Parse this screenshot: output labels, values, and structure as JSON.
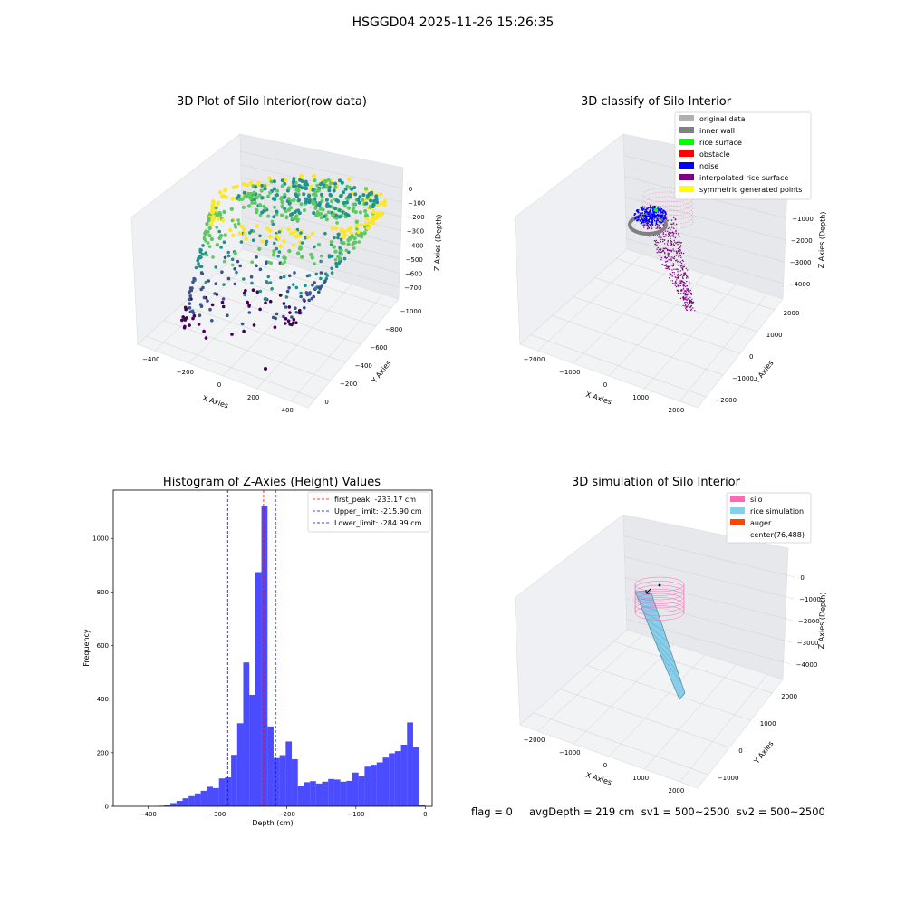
{
  "figure": {
    "title": "HSGGD04 2025-11-26 15:26:35",
    "footer": "flag = 0     avgDepth = 219 cm  sv1 = 500~2500  sv2 = 500~2500"
  },
  "chart_data": [
    {
      "type": "scatter",
      "subtype": "3d",
      "title": "3D Plot of Silo Interior(row data)",
      "xlabel": "X Axies",
      "ylabel": "Y Axies",
      "zlabel": "Z Axies (Depth)",
      "x_ticks": [
        "−400",
        "−200",
        "0",
        "200",
        "400"
      ],
      "y_ticks": [
        "0",
        "−200",
        "−400",
        "−600",
        "−800",
        "−1000"
      ],
      "z_ticks": [
        "0",
        "−100",
        "−200",
        "−300",
        "−400",
        "−500",
        "−600",
        "−700"
      ],
      "colormap": "viridis",
      "colors": [
        "#440154",
        "#3b528b",
        "#21918c",
        "#5ec962",
        "#fde725"
      ]
    },
    {
      "type": "scatter",
      "subtype": "3d",
      "title": "3D classify of Silo Interior",
      "xlabel": "X Axies",
      "ylabel": "Y Axies",
      "zlabel": "Z Axies (Depth)",
      "x_ticks": [
        "−2000",
        "−1000",
        "0",
        "1000",
        "2000"
      ],
      "y_ticks": [
        "−2000",
        "−1000",
        "0",
        "1000",
        "2000"
      ],
      "z_ticks": [
        "0",
        "−1000",
        "−2000",
        "−3000",
        "−4000"
      ],
      "legend": [
        {
          "label": "original data",
          "color": "#b0b0b0"
        },
        {
          "label": "inner wall",
          "color": "#808080"
        },
        {
          "label": "rice surface",
          "color": "#00ff00"
        },
        {
          "label": "obstacle",
          "color": "#ff0000"
        },
        {
          "label": "noise",
          "color": "#0000ff"
        },
        {
          "label": "interpolated rice surface",
          "color": "#800080"
        },
        {
          "label": "symmetric generated points",
          "color": "#ffff00"
        }
      ],
      "legend_position": "top-right"
    },
    {
      "type": "bar",
      "subtype": "histogram",
      "title": "Histogram of Z-Axies (Height) Values",
      "xlabel": "Depth (cm)",
      "ylabel": "Frequency",
      "xlim": [
        -450,
        10
      ],
      "ylim": [
        0,
        1180
      ],
      "x_ticks": [
        -400,
        -300,
        -200,
        -100,
        0
      ],
      "x_tick_labels": [
        "−400",
        "−300",
        "−200",
        "−100",
        "0"
      ],
      "y_ticks": [
        0,
        200,
        400,
        600,
        800,
        1000
      ],
      "bar_color": "#0000ff",
      "bins": [
        {
          "start": -385,
          "end": -378,
          "count": 2
        },
        {
          "start": -378,
          "end": -371,
          "count": 5
        },
        {
          "start": -371,
          "end": -364,
          "count": 12
        },
        {
          "start": -364,
          "end": -357,
          "count": 20
        },
        {
          "start": -357,
          "end": -350,
          "count": 30
        },
        {
          "start": -350,
          "end": -343,
          "count": 38
        },
        {
          "start": -343,
          "end": -336,
          "count": 48
        },
        {
          "start": -336,
          "end": -329,
          "count": 58
        },
        {
          "start": -329,
          "end": -322,
          "count": 73
        },
        {
          "start": -322,
          "end": -315,
          "count": 68
        },
        {
          "start": -315,
          "end": -308,
          "count": 104
        },
        {
          "start": -308,
          "end": -301,
          "count": 108
        },
        {
          "start": -301,
          "end": -294,
          "count": 192
        },
        {
          "start": -294,
          "end": -287,
          "count": 310
        },
        {
          "start": -287,
          "end": -280,
          "count": 537
        },
        {
          "start": -280,
          "end": -273,
          "count": 416
        },
        {
          "start": -273,
          "end": -266,
          "count": 874
        },
        {
          "start": -266,
          "end": -259,
          "count": 1122
        },
        {
          "start": -259,
          "end": -252,
          "count": 298
        },
        {
          "start": -252,
          "end": -245,
          "count": 180
        },
        {
          "start": -245,
          "end": -238,
          "count": 191
        },
        {
          "start": -238,
          "end": -231,
          "count": 242
        },
        {
          "start": -231,
          "end": -224,
          "count": 176
        },
        {
          "start": -224,
          "end": -217,
          "count": 77
        },
        {
          "start": -217,
          "end": -210,
          "count": 90
        },
        {
          "start": -210,
          "end": -203,
          "count": 94
        },
        {
          "start": -203,
          "end": -196,
          "count": 85
        },
        {
          "start": -196,
          "end": -189,
          "count": 92
        },
        {
          "start": -189,
          "end": -182,
          "count": 102
        },
        {
          "start": -182,
          "end": -175,
          "count": 100
        },
        {
          "start": -175,
          "end": -168,
          "count": 92
        },
        {
          "start": -168,
          "end": -161,
          "count": 95
        },
        {
          "start": -161,
          "end": -154,
          "count": 126
        },
        {
          "start": -154,
          "end": -147,
          "count": 112
        },
        {
          "start": -147,
          "end": -140,
          "count": 148
        },
        {
          "start": -140,
          "end": -133,
          "count": 155
        },
        {
          "start": -133,
          "end": -126,
          "count": 164
        },
        {
          "start": -126,
          "end": -119,
          "count": 182
        },
        {
          "start": -119,
          "end": -112,
          "count": 198
        },
        {
          "start": -112,
          "end": -105,
          "count": 206
        },
        {
          "start": -105,
          "end": -98,
          "count": 230
        },
        {
          "start": -98,
          "end": -91,
          "count": 313
        },
        {
          "start": -91,
          "end": -84,
          "count": 222
        },
        {
          "start": -84,
          "end": -77,
          "count": 5
        }
      ],
      "lines": [
        {
          "label": "first_peak: -233.17 cm",
          "x": -233.17,
          "color": "#ff0000"
        },
        {
          "label": "Upper_limit: -215.90 cm",
          "x": -215.9,
          "color": "#0000ff"
        },
        {
          "label": "Lower_limit: -284.99 cm",
          "x": -284.99,
          "color": "#0000ff"
        }
      ],
      "legend_position": "top-right"
    },
    {
      "type": "surface",
      "subtype": "3d",
      "title": "3D simulation of Silo Interior",
      "xlabel": "X Axies",
      "ylabel": "Y Axies",
      "zlabel": "Z Axies (Depth)",
      "x_ticks": [
        "−2000",
        "−1000",
        "0",
        "1000",
        "2000"
      ],
      "y_ticks": [
        "−1000",
        "0",
        "1000",
        "2000"
      ],
      "z_ticks": [
        "0",
        "−1000",
        "−2000",
        "−3000",
        "−4000"
      ],
      "legend": [
        {
          "label": "silo",
          "color": "#ff69b4"
        },
        {
          "label": "rice simulation",
          "color": "#87ceeb"
        },
        {
          "label": "auger",
          "color": "#ff4500"
        },
        {
          "label": "center(76,488)",
          "color": "#ffffff"
        }
      ],
      "legend_position": "top-right"
    }
  ]
}
